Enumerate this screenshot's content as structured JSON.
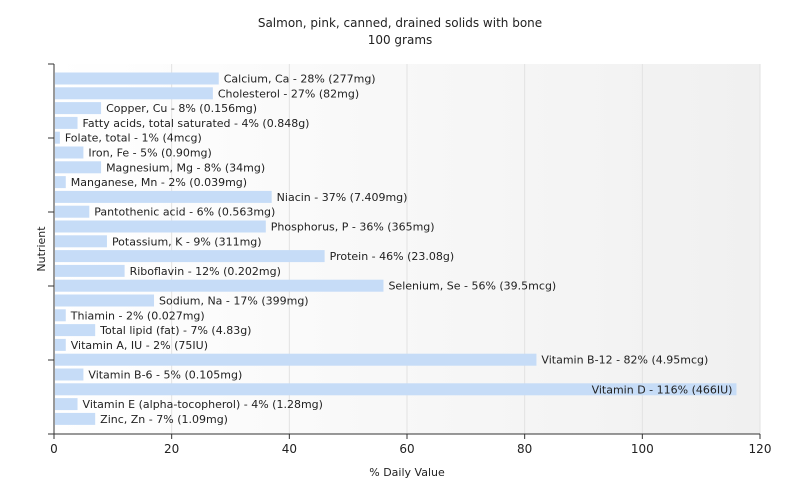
{
  "chart_data": {
    "type": "bar",
    "orientation": "horizontal",
    "title": "Salmon, pink, canned, drained solids with bone",
    "subtitle": "100 grams",
    "xlabel": "% Daily Value",
    "ylabel": "Nutrient",
    "xlim": [
      0,
      120
    ],
    "xticks": [
      0,
      20,
      40,
      60,
      80,
      100,
      120
    ],
    "grid": true,
    "bar_color": "#c6dcf7",
    "categories": [
      "Calcium, Ca",
      "Cholesterol",
      "Copper, Cu",
      "Fatty acids, total saturated",
      "Folate, total",
      "Iron, Fe",
      "Magnesium, Mg",
      "Manganese, Mn",
      "Niacin",
      "Pantothenic acid",
      "Phosphorus, P",
      "Potassium, K",
      "Protein",
      "Riboflavin",
      "Selenium, Se",
      "Sodium, Na",
      "Thiamin",
      "Total lipid (fat)",
      "Vitamin A, IU",
      "Vitamin B-12",
      "Vitamin B-6",
      "Vitamin D",
      "Vitamin E (alpha-tocopherol)",
      "Zinc, Zn"
    ],
    "values": [
      28,
      27,
      8,
      4,
      1,
      5,
      8,
      2,
      37,
      6,
      36,
      9,
      46,
      12,
      56,
      17,
      2,
      7,
      2,
      82,
      5,
      116,
      4,
      7
    ],
    "labels": [
      "Calcium, Ca - 28% (277mg)",
      "Cholesterol - 27% (82mg)",
      "Copper, Cu - 8% (0.156mg)",
      "Fatty acids, total saturated - 4% (0.848g)",
      "Folate, total - 1% (4mcg)",
      "Iron, Fe - 5% (0.90mg)",
      "Magnesium, Mg - 8% (34mg)",
      "Manganese, Mn - 2% (0.039mg)",
      "Niacin - 37% (7.409mg)",
      "Pantothenic acid - 6% (0.563mg)",
      "Phosphorus, P - 36% (365mg)",
      "Potassium, K - 9% (311mg)",
      "Protein - 46% (23.08g)",
      "Riboflavin - 12% (0.202mg)",
      "Selenium, Se - 56% (39.5mcg)",
      "Sodium, Na - 17% (399mg)",
      "Thiamin - 2% (0.027mg)",
      "Total lipid (fat) - 7% (4.83g)",
      "Vitamin A, IU - 2% (75IU)",
      "Vitamin B-12 - 82% (4.95mcg)",
      "Vitamin B-6 - 5% (0.105mg)",
      "Vitamin D - 116% (466IU)",
      "Vitamin E (alpha-tocopherol) - 4% (1.28mg)",
      "Zinc, Zn - 7% (1.09mg)"
    ]
  }
}
